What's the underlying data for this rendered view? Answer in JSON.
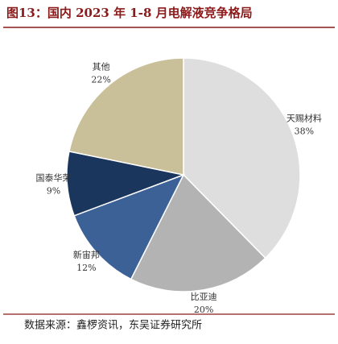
{
  "chart_data": {
    "type": "pie",
    "title": "图13：国内 2023 年 1-8 月电解液竞争格局",
    "categories": [
      "天赐材料",
      "比亚迪",
      "新宙邦",
      "国泰华荣",
      "其他"
    ],
    "values": [
      38,
      20,
      12,
      9,
      22
    ],
    "value_labels": [
      "38%",
      "20%",
      "12%",
      "9%",
      "22%"
    ],
    "colors": [
      "#dedede",
      "#b3b3b3",
      "#3c6197",
      "#1b365c",
      "#c9bf98"
    ],
    "source": "数据来源：鑫椤资讯，东吴证券研究所"
  }
}
